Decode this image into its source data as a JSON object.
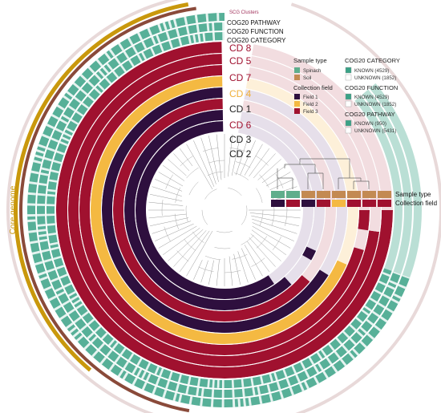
{
  "diagram": {
    "header_labels": {
      "scg": "SCG Clusters",
      "pathway": "COG20 PATHWAY",
      "function": "COG20 FUNCTION",
      "category": "COG20 CATEGORY"
    },
    "core_label": "Core genome",
    "layers": [
      {
        "label": "CD 8",
        "color": "#a0112f",
        "text_color": "#a0112f"
      },
      {
        "label": "CD 5",
        "color": "#a0112f",
        "text_color": "#a0112f"
      },
      {
        "label": "CD 7",
        "color": "#a0112f",
        "text_color": "#a0112f"
      },
      {
        "label": "CD 4",
        "color": "#f4b942",
        "text_color": "#f0b03a"
      },
      {
        "label": "CD 1",
        "color": "#2e0f3e",
        "text_color": "#222222"
      },
      {
        "label": "CD 6",
        "color": "#a0112f",
        "text_color": "#a0112f"
      },
      {
        "label": "CD 3",
        "color": "#2e0f3e",
        "text_color": "#222222"
      },
      {
        "label": "CD 2",
        "color": "#2e0f3e",
        "text_color": "#222222"
      }
    ],
    "side_labels": {
      "sample_type": "Sample type",
      "collection_field": "Collection field"
    },
    "sample_type_colors": [
      "#5fae8c",
      "#5fae8c",
      "#c38a52",
      "#c38a52",
      "#c38a52",
      "#c38a52",
      "#c38a52",
      "#c38a52"
    ],
    "collection_field_colors": [
      "#2e0f3e",
      "#a0112f",
      "#2e0f3e",
      "#a0112f",
      "#f4b942",
      "#a0112f",
      "#a0112f",
      "#a0112f"
    ]
  },
  "legend": {
    "sample_type": {
      "title": "Sample type",
      "items": [
        {
          "label": "Spinach",
          "color": "#5fae8c"
        },
        {
          "label": "Soil",
          "color": "#c38a52"
        }
      ]
    },
    "collection_field": {
      "title": "Collection field",
      "items": [
        {
          "label": "Field 1",
          "color": "#2e0f3e"
        },
        {
          "label": "Field 2",
          "color": "#f4b942"
        },
        {
          "label": "Field 3",
          "color": "#a0112f"
        }
      ]
    },
    "cog_category": {
      "title": "COG20 CATEGORY",
      "items": [
        {
          "label": "KNOWN (4529)",
          "color": "#3aa286"
        },
        {
          "label": "UNKNOWN (1852)",
          "color": "#ffffff"
        }
      ]
    },
    "cog_function": {
      "title": "COG20 FUNCTION",
      "items": [
        {
          "label": "KNOWN (4529)",
          "color": "#3aa286"
        },
        {
          "label": "UNKNOWN (1852)",
          "color": "#ffffff"
        }
      ]
    },
    "cog_pathway": {
      "title": "COG20 PATHWAY",
      "items": [
        {
          "label": "KNOWN (950)",
          "color": "#3aa286"
        },
        {
          "label": "UNKNOWN (5431)",
          "color": "#ffffff"
        }
      ]
    }
  },
  "colors": {
    "core_bar": "#c9980c",
    "brown_bar": "#8a4a3a",
    "cog": "#3aa286",
    "ghost_ring": "#e8d9d9"
  }
}
